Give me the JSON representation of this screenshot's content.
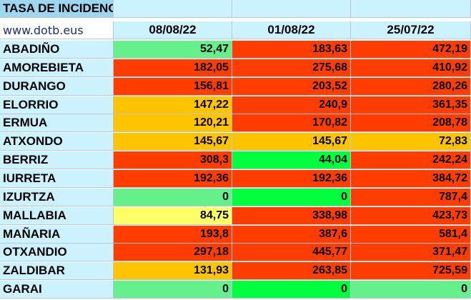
{
  "sheet": {
    "title": "TASA DE INCIDENCIA",
    "website": "www.dotb.eus",
    "columns": [
      "08/08/22",
      "01/08/22",
      "25/07/22"
    ],
    "rows": [
      {
        "name": "ABADIÑO",
        "values": [
          "52,47",
          "183,63",
          "472,19"
        ],
        "colors": [
          "g",
          "r",
          "r"
        ]
      },
      {
        "name": "AMOREBIETA",
        "values": [
          "182,05",
          "275,68",
          "410,92"
        ],
        "colors": [
          "r",
          "r",
          "r"
        ]
      },
      {
        "name": "DURANGO",
        "values": [
          "156,81",
          "203,52",
          "280,26"
        ],
        "colors": [
          "r",
          "r",
          "r"
        ]
      },
      {
        "name": "ELORRIO",
        "values": [
          "147,22",
          "240,9",
          "361,35"
        ],
        "colors": [
          "o",
          "r",
          "r"
        ]
      },
      {
        "name": "ERMUA",
        "values": [
          "120,21",
          "170,82",
          "208,78"
        ],
        "colors": [
          "o",
          "r",
          "r"
        ]
      },
      {
        "name": "ATXONDO",
        "values": [
          "145,67",
          "145,67",
          "72,83"
        ],
        "colors": [
          "o",
          "o",
          "o"
        ]
      },
      {
        "name": "BERRIZ",
        "values": [
          "308,3",
          "44,04",
          "242,24"
        ],
        "colors": [
          "r",
          "G",
          "r"
        ]
      },
      {
        "name": "IURRETA",
        "values": [
          "192,36",
          "192,36",
          "384,72"
        ],
        "colors": [
          "r",
          "r",
          "r"
        ]
      },
      {
        "name": "IZURTZA",
        "values": [
          "0",
          "0",
          "787,4"
        ],
        "colors": [
          "g",
          "G",
          "r"
        ]
      },
      {
        "name": "MALLABIA",
        "values": [
          "84,75",
          "338,98",
          "423,73"
        ],
        "colors": [
          "y",
          "r",
          "r"
        ]
      },
      {
        "name": "MAÑARIA",
        "values": [
          "193,8",
          "387,6",
          "581,4"
        ],
        "colors": [
          "r",
          "r",
          "r"
        ]
      },
      {
        "name": "OTXANDIO",
        "values": [
          "297,18",
          "445,77",
          "371,47"
        ],
        "colors": [
          "r",
          "r",
          "r"
        ]
      },
      {
        "name": "ZALDIBAR",
        "values": [
          "131,93",
          "263,85",
          "725,59"
        ],
        "colors": [
          "o",
          "r",
          "r"
        ]
      },
      {
        "name": "GARAI",
        "values": [
          "0",
          "0",
          "0"
        ],
        "colors": [
          "g",
          "G",
          "g"
        ]
      }
    ]
  },
  "palette": {
    "g": "#66f08c",
    "G": "#00ff3c",
    "r": "#ff3d00",
    "o": "#ffc400",
    "y": "#ffff66"
  }
}
